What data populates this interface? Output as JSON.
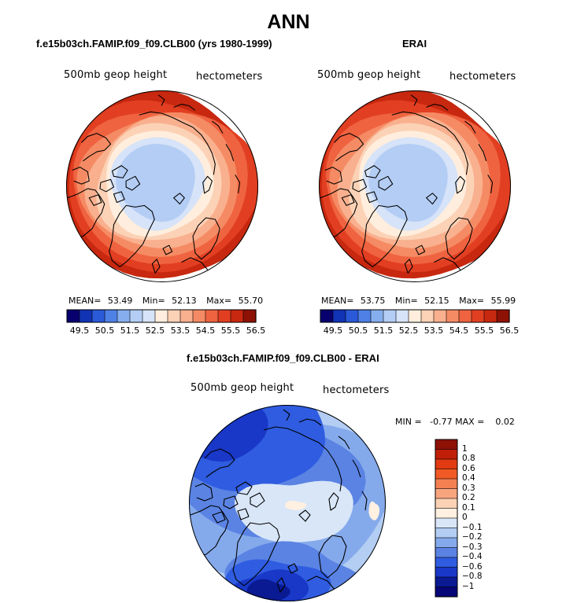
{
  "title": "ANN",
  "panels": [
    {
      "title": "f.e15b03ch.FAMIP.f09_f09.CLB00 (yrs 1980-1999)",
      "left_label": "500mb geop height",
      "right_label": "hectometers",
      "stats": {
        "mean_label": "MEAN=",
        "mean": "53.49",
        "min_label": "Min=",
        "min": "52.13",
        "max_label": "Max=",
        "max": "55.70"
      }
    },
    {
      "title": "ERAI",
      "left_label": "500mb geop height",
      "right_label": "hectometers",
      "stats": {
        "mean_label": "MEAN=",
        "mean": "53.75",
        "min_label": "Min=",
        "min": "52.15",
        "max_label": "Max=",
        "max": "55.99"
      }
    }
  ],
  "diff_panel": {
    "title": "f.e15b03ch.FAMIP.f09_f09.CLB00 - ERAI",
    "left_label": "500mb geop height",
    "right_label": "hectometers",
    "stats_text": "MIN =   -0.77 MAX =    0.02"
  },
  "chart_data": [
    {
      "type": "heatmap",
      "title": "f.e15b03ch.FAMIP.f09_f09.CLB00 (yrs 1980-1999)",
      "projection": "north polar stereographic",
      "variable": "500mb geop height",
      "units": "hectometers",
      "mean": 53.49,
      "min": 52.13,
      "max": 55.7,
      "contour_levels": [
        49.5,
        50.0,
        50.5,
        51.0,
        51.5,
        52.0,
        52.5,
        53.0,
        53.5,
        54.0,
        54.5,
        55.0,
        55.5,
        56.0,
        56.5
      ],
      "colorbar_ticks": [
        "49.5",
        "50.5",
        "51.5",
        "52.5",
        "53.5",
        "54.5",
        "55.5",
        "56.5"
      ]
    },
    {
      "type": "heatmap",
      "title": "ERAI",
      "projection": "north polar stereographic",
      "variable": "500mb geop height",
      "units": "hectometers",
      "mean": 53.75,
      "min": 52.15,
      "max": 55.99,
      "contour_levels": [
        49.5,
        50.0,
        50.5,
        51.0,
        51.5,
        52.0,
        52.5,
        53.0,
        53.5,
        54.0,
        54.5,
        55.0,
        55.5,
        56.0,
        56.5
      ],
      "colorbar_ticks": [
        "49.5",
        "50.5",
        "51.5",
        "52.5",
        "53.5",
        "54.5",
        "55.5",
        "56.5"
      ]
    },
    {
      "type": "heatmap",
      "title": "f.e15b03ch.FAMIP.f09_f09.CLB00 - ERAI",
      "projection": "north polar stereographic",
      "variable": "500mb geop height",
      "units": "hectometers",
      "min": -0.77,
      "max": 0.02,
      "contour_levels": [
        -1,
        -0.8,
        -0.6,
        -0.4,
        -0.3,
        -0.2,
        -0.1,
        0,
        0.1,
        0.2,
        0.3,
        0.4,
        0.6,
        0.8,
        1
      ],
      "colorbar_ticks": [
        "1",
        "0.8",
        "0.6",
        "0.4",
        "0.3",
        "0.2",
        "0.1",
        "0",
        "−0.1",
        "−0.2",
        "−0.3",
        "−0.4",
        "−0.6",
        "−0.8",
        "−1"
      ]
    }
  ],
  "colors": {
    "seq": [
      "#08006e",
      "#1133b5",
      "#2a5ad8",
      "#4f80e6",
      "#86aeee",
      "#b4cdf4",
      "#d6e3f8",
      "#ffeedd",
      "#fcd2b6",
      "#f9b08e",
      "#f58b64",
      "#ef6340",
      "#e23f22",
      "#c7280f",
      "#8e1105"
    ],
    "diff": [
      "#8e1105",
      "#c01e06",
      "#e23a12",
      "#f15a25",
      "#f48052",
      "#f8a57f",
      "#fcd2b4",
      "#fff0e1",
      "#d8e6f8",
      "#b3cdf3",
      "#85aaec",
      "#5a83e3",
      "#2f5ce0",
      "#1938c8",
      "#0a1a93",
      "#060677"
    ],
    "coast": "#000000"
  }
}
